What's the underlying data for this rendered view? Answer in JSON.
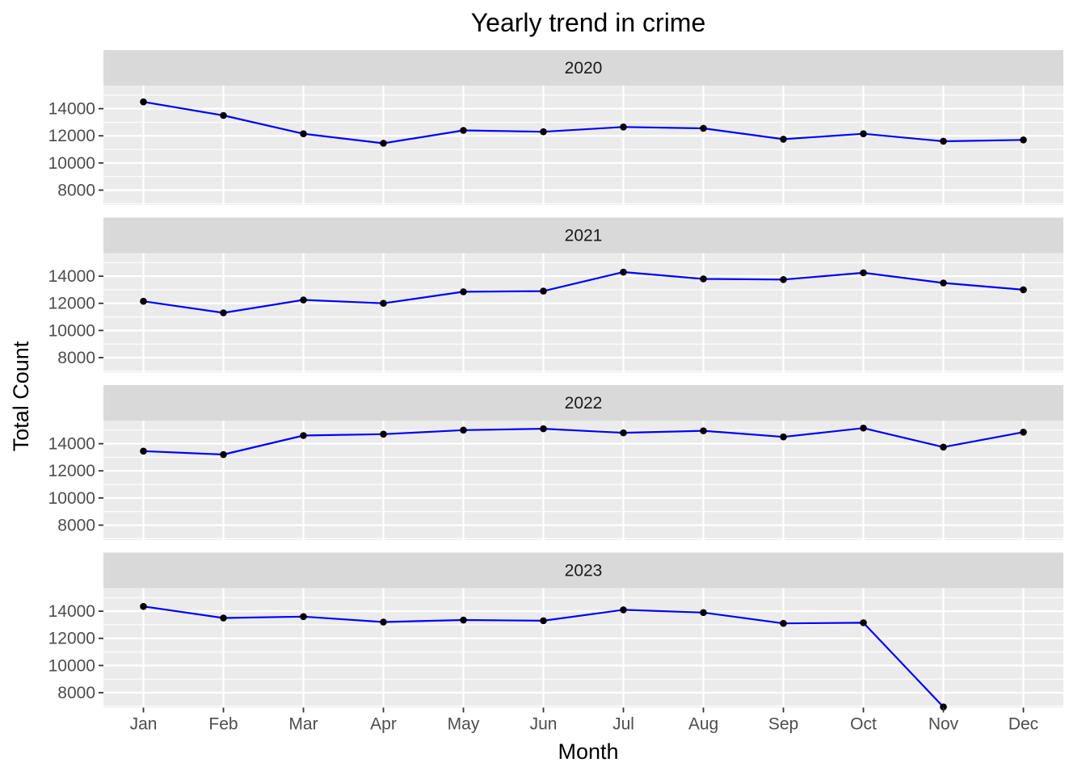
{
  "chart_data": {
    "type": "line",
    "title": "Yearly trend in crime",
    "xlabel": "Month",
    "ylabel": "Total Count",
    "facet_layout": "rows",
    "categories": [
      "Jan",
      "Feb",
      "Mar",
      "Apr",
      "May",
      "Jun",
      "Jul",
      "Aug",
      "Sep",
      "Oct",
      "Nov",
      "Dec"
    ],
    "yticks": [
      8000,
      10000,
      12000,
      14000
    ],
    "ylim": [
      6900,
      15700
    ],
    "grid": true,
    "colors": {
      "line": "#0000ff",
      "point": "#000000",
      "panel": "#ebebeb",
      "strip": "#d9d9d9",
      "grid": "#ffffff"
    },
    "facets": [
      {
        "label": "2020",
        "values": [
          14500,
          13500,
          12150,
          11450,
          12400,
          12300,
          12650,
          12550,
          11750,
          12150,
          11600,
          11700
        ]
      },
      {
        "label": "2021",
        "values": [
          12150,
          11300,
          12250,
          12000,
          12850,
          12900,
          14300,
          13800,
          13750,
          14250,
          13500,
          13000
        ]
      },
      {
        "label": "2022",
        "values": [
          13450,
          13200,
          14600,
          14700,
          15000,
          15100,
          14800,
          14950,
          14500,
          15150,
          13750,
          14850
        ]
      },
      {
        "label": "2023",
        "values": [
          14350,
          13500,
          13600,
          13200,
          13350,
          13300,
          14100,
          13900,
          13100,
          13150,
          6950,
          null
        ]
      }
    ]
  }
}
